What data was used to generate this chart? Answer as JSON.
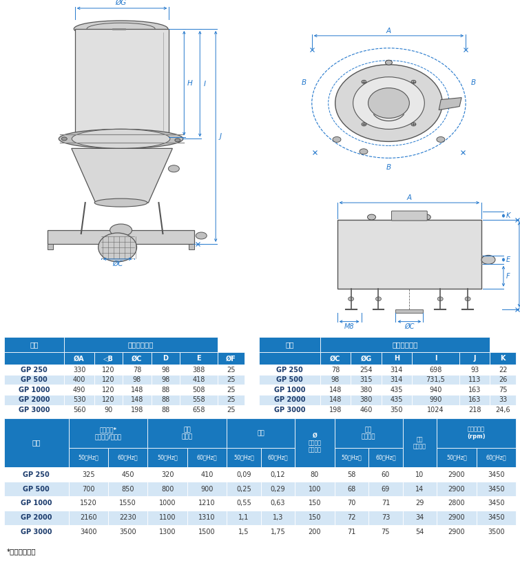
{
  "table1_rows": [
    [
      "GP 250",
      "330",
      "120",
      "78",
      "98",
      "388",
      "25"
    ],
    [
      "GP 500",
      "400",
      "120",
      "98",
      "98",
      "418",
      "25"
    ],
    [
      "GP 1000",
      "490",
      "120",
      "148",
      "88",
      "508",
      "25"
    ],
    [
      "GP 2000",
      "530",
      "120",
      "148",
      "88",
      "558",
      "25"
    ],
    [
      "GP 3000",
      "560",
      "90",
      "198",
      "88",
      "658",
      "25"
    ]
  ],
  "table2_rows": [
    [
      "GP 250",
      "78",
      "254",
      "314",
      "698",
      "93",
      "22"
    ],
    [
      "GP 500",
      "98",
      "315",
      "314",
      "731,5",
      "113",
      "26"
    ],
    [
      "GP 1000",
      "148",
      "380",
      "435",
      "940",
      "163",
      "75"
    ],
    [
      "GP 2000",
      "148",
      "380",
      "435",
      "990",
      "163",
      "33"
    ],
    [
      "GP 3000",
      "198",
      "460",
      "350",
      "1024",
      "218",
      "24,6"
    ]
  ],
  "table3_rows": [
    [
      "GP 250",
      "325",
      "450",
      "320",
      "410",
      "0,09",
      "0,12",
      "80",
      "58",
      "60",
      "10",
      "2900",
      "3450"
    ],
    [
      "GP 500",
      "700",
      "850",
      "800",
      "900",
      "0,25",
      "0,29",
      "100",
      "68",
      "69",
      "14",
      "2900",
      "3450"
    ],
    [
      "GP 1000",
      "1520",
      "1550",
      "1000",
      "1210",
      "0,55",
      "0,63",
      "150",
      "70",
      "71",
      "29",
      "2800",
      "3450"
    ],
    [
      "GP 2000",
      "2160",
      "2230",
      "1100",
      "1310",
      "1,1",
      "1,3",
      "150",
      "72",
      "73",
      "34",
      "2900",
      "3450"
    ],
    [
      "GP 3000",
      "3400",
      "3500",
      "1300",
      "1500",
      "1,5",
      "1,75",
      "200",
      "71",
      "75",
      "54",
      "2900",
      "3500"
    ]
  ],
  "footnote": "*自由入口流量",
  "header_bg": "#1878BE",
  "row_odd_bg": "#D4E6F5",
  "row_even_bg": "#FFFFFF",
  "dim_color": "#2277CC",
  "body_color": "#888888",
  "fill_color": "#E8E8E8"
}
